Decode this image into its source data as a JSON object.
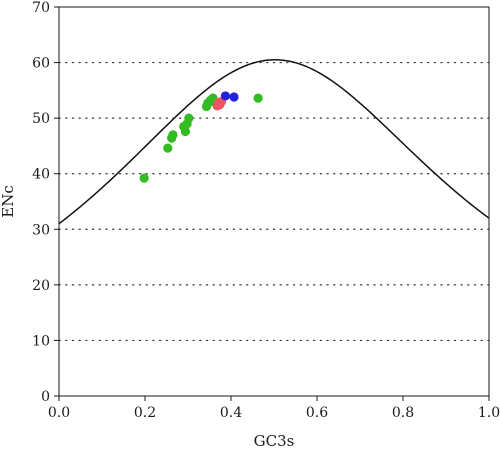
{
  "chart_data": {
    "type": "scatter",
    "xlabel": "GC3s",
    "ylabel": "ENc",
    "xlim": [
      0.0,
      1.0
    ],
    "ylim": [
      0,
      70
    ],
    "x_ticks": [
      "0.0",
      "0.2",
      "0.4",
      "0.6",
      "0.8",
      "1.0"
    ],
    "y_ticks": [
      "0",
      "10",
      "20",
      "30",
      "40",
      "50",
      "60",
      "70"
    ],
    "grid": "horizontal dotted",
    "legend": "none",
    "expected_curve": "ENc = 2 + GC3s + 29 / (GC3s^2 + (1 - GC3s)^2)",
    "series": [
      {
        "color": "#33bb22",
        "points": [
          [
            0.198,
            39.2
          ],
          [
            0.253,
            44.6
          ],
          [
            0.262,
            46.4
          ],
          [
            0.265,
            47.0
          ],
          [
            0.29,
            48.5
          ],
          [
            0.294,
            47.6
          ],
          [
            0.298,
            49.0
          ],
          [
            0.302,
            50.0
          ],
          [
            0.343,
            52.1
          ],
          [
            0.346,
            52.7
          ],
          [
            0.352,
            53.2
          ],
          [
            0.358,
            53.6
          ],
          [
            0.362,
            52.9
          ],
          [
            0.367,
            52.3
          ],
          [
            0.463,
            53.6
          ]
        ]
      },
      {
        "color": "#ee5566",
        "points": [
          [
            0.368,
            52.2
          ],
          [
            0.371,
            52.8
          ],
          [
            0.374,
            52.4
          ],
          [
            0.378,
            53.0
          ]
        ]
      },
      {
        "color": "#2222dd",
        "points": [
          [
            0.387,
            54.0
          ],
          [
            0.407,
            53.8
          ]
        ]
      }
    ]
  }
}
